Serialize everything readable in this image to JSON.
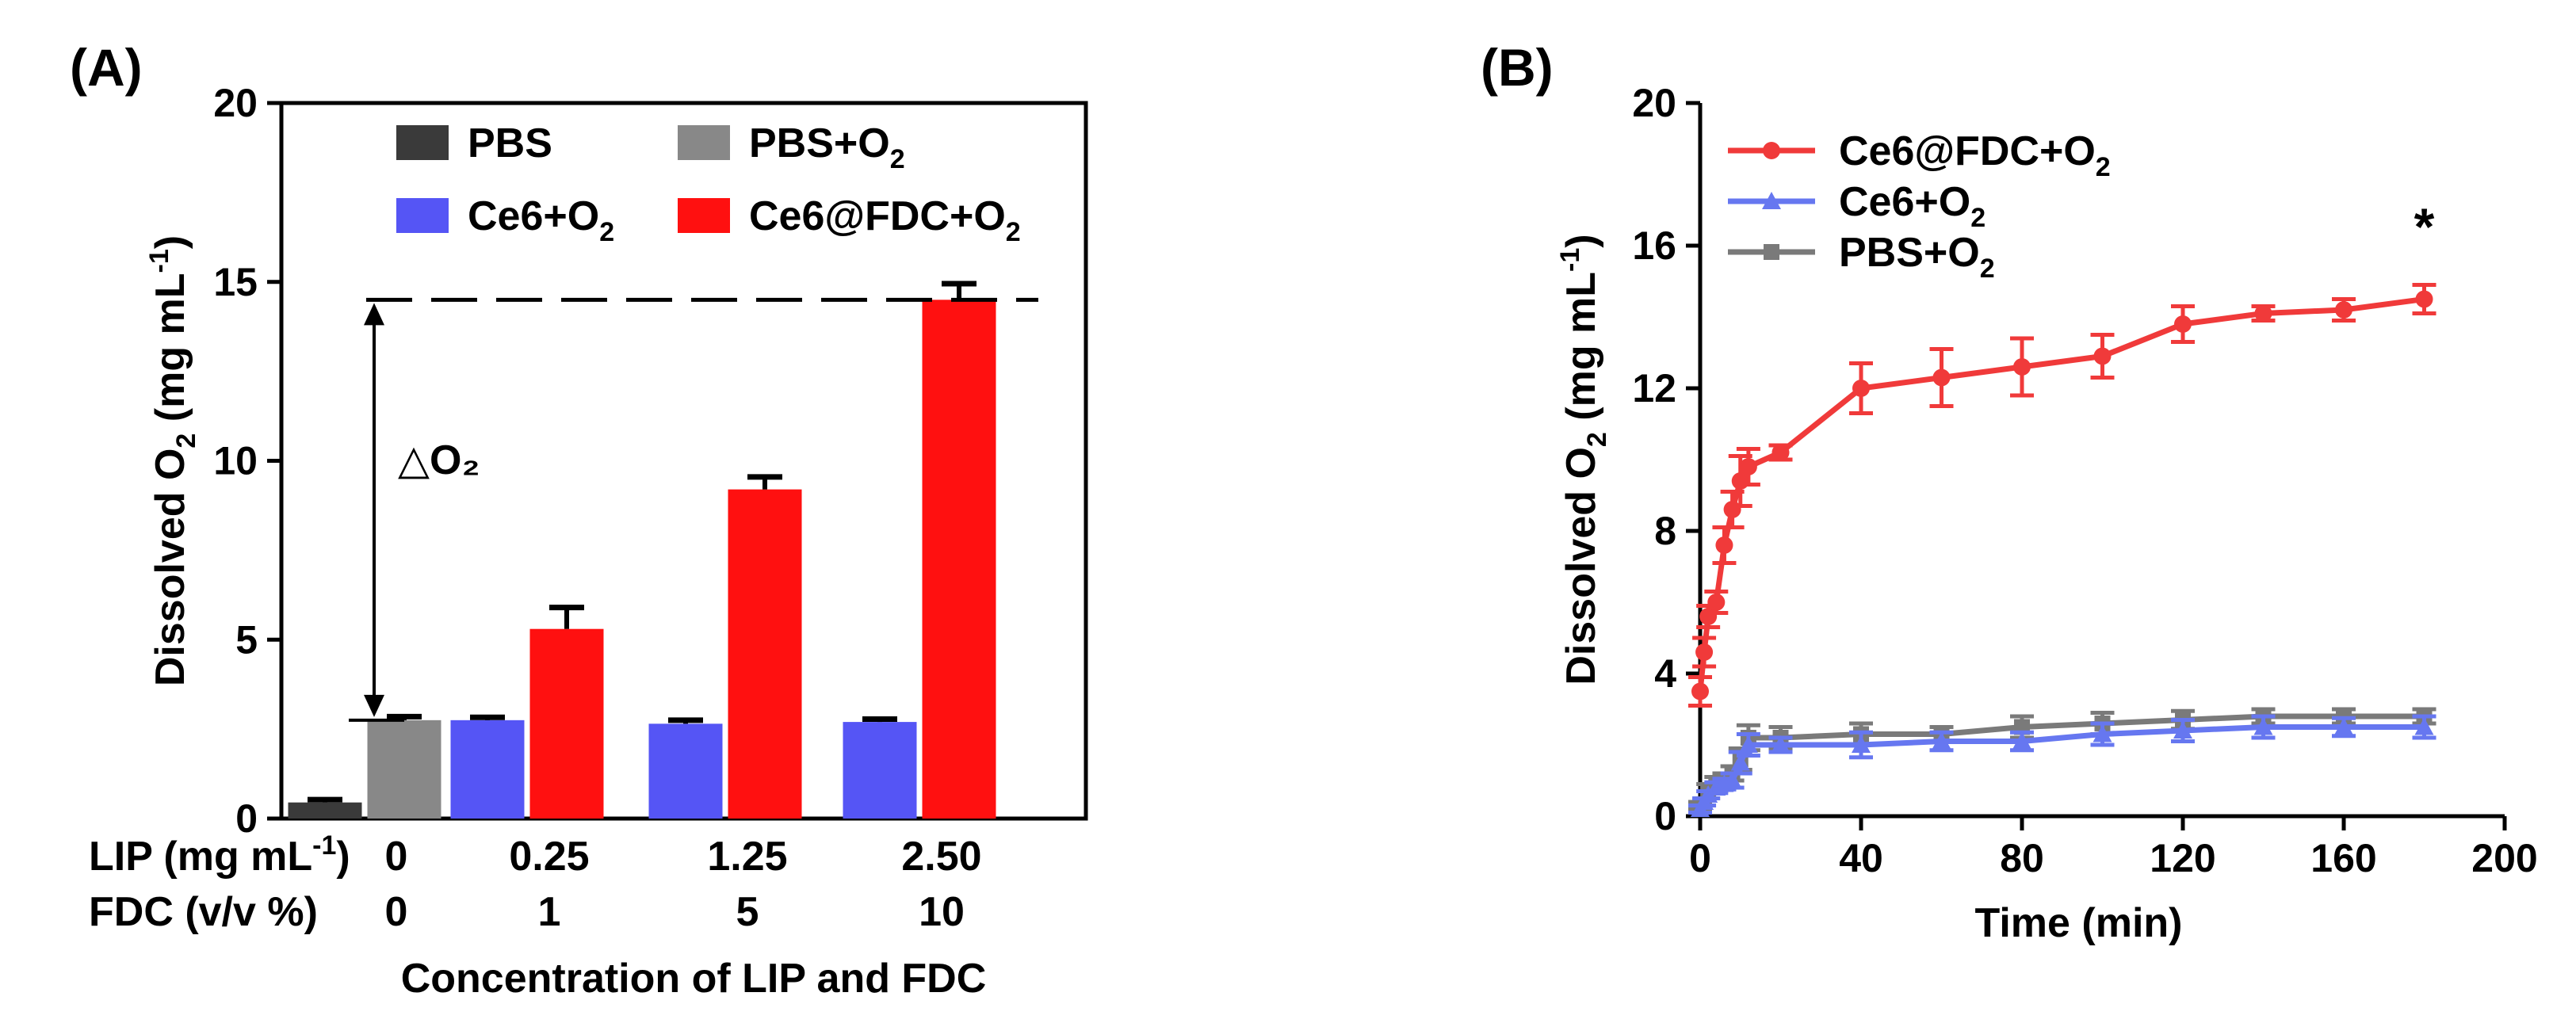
{
  "figure": {
    "panels": [
      "(A)",
      "(B)"
    ]
  },
  "chart_data": [
    {
      "type": "bar",
      "panel": "(A)",
      "ylabel": "Dissolved O2 (mg mL-1)",
      "ylabel_parts": {
        "pre": "Dissolved O",
        "sub": "2",
        "mid": " (mg mL",
        "sup": "-1",
        "post": ")"
      },
      "ylim": [
        0,
        20
      ],
      "yticks": [
        0,
        5,
        10,
        15,
        20
      ],
      "xlabel": "Concentration of LIP and FDC",
      "row_labels": {
        "lip": {
          "pre": "LIP (mg mL",
          "sup": "-1",
          "post": ")"
        },
        "fdc": "FDC (v/v %)"
      },
      "groups": [
        {
          "lip": "0",
          "fdc": "0"
        },
        {
          "lip": "0.25",
          "fdc": "1"
        },
        {
          "lip": "1.25",
          "fdc": "5"
        },
        {
          "lip": "2.50",
          "fdc": "10"
        }
      ],
      "series": [
        {
          "name": "PBS",
          "label": {
            "base": "PBS",
            "sub": ""
          },
          "color": "#3a3a3a",
          "values": [
            0.45,
            null,
            null,
            null
          ],
          "errors": [
            0.08,
            null,
            null,
            null
          ]
        },
        {
          "name": "PBS+O2",
          "label": {
            "base": "PBS+O",
            "sub": "2"
          },
          "color": "#888888",
          "values": [
            2.75,
            null,
            null,
            null
          ],
          "errors": [
            0.1,
            null,
            null,
            null
          ]
        },
        {
          "name": "Ce6+O2",
          "label": {
            "base": "Ce6+O",
            "sub": "2"
          },
          "color": "#5555f5",
          "values": [
            null,
            2.75,
            2.65,
            2.7
          ],
          "errors": [
            null,
            0.08,
            0.1,
            0.08
          ]
        },
        {
          "name": "Ce6@FDC+O2",
          "label": {
            "base": "Ce6@FDC+O",
            "sub": "2"
          },
          "color": "#ff1010",
          "values": [
            null,
            5.3,
            9.2,
            14.5
          ],
          "errors": [
            null,
            0.6,
            0.35,
            0.45
          ]
        }
      ],
      "annotation": {
        "text": "△O₂",
        "from": 2.75,
        "to": 14.5
      }
    },
    {
      "type": "line",
      "panel": "(B)",
      "xlabel": "Time (min)",
      "ylabel": "Dissolved O2 (mg mL-1)",
      "ylabel_parts": {
        "pre": "Dissolved O",
        "sub": "2",
        "mid": " (mg mL",
        "sup": "-1",
        "post": ")"
      },
      "xlim": [
        0,
        200
      ],
      "ylim": [
        0,
        20
      ],
      "xticks": [
        0,
        40,
        80,
        120,
        160,
        200
      ],
      "yticks": [
        0,
        4,
        8,
        12,
        16,
        20
      ],
      "annotation": {
        "text": "*",
        "x": 180,
        "y": 16.2
      },
      "series": [
        {
          "name": "Ce6@FDC+O2",
          "label": {
            "base": "Ce6@FDC+O",
            "sub": "2"
          },
          "color": "#f03a3a",
          "marker": "circle",
          "x": [
            0,
            1,
            2,
            4,
            6,
            8,
            10,
            12,
            20,
            40,
            60,
            80,
            100,
            120,
            140,
            160,
            180
          ],
          "y": [
            3.5,
            4.6,
            5.6,
            6.0,
            7.6,
            8.6,
            9.4,
            9.8,
            10.2,
            12.0,
            12.3,
            12.6,
            12.9,
            13.8,
            14.1,
            14.2,
            14.5
          ],
          "err": [
            0.4,
            0.4,
            0.3,
            0.3,
            0.5,
            0.5,
            0.7,
            0.5,
            0.2,
            0.7,
            0.8,
            0.8,
            0.6,
            0.5,
            0.2,
            0.3,
            0.4
          ]
        },
        {
          "name": "Ce6+O2",
          "label": {
            "base": "Ce6+O",
            "sub": "2"
          },
          "color": "#6677f0",
          "marker": "triangle",
          "x": [
            0,
            1,
            2,
            4,
            6,
            8,
            10,
            12,
            20,
            40,
            60,
            80,
            100,
            120,
            140,
            160,
            180
          ],
          "y": [
            0.2,
            0.4,
            0.6,
            0.8,
            0.9,
            1.0,
            1.5,
            2.0,
            2.0,
            2.0,
            2.1,
            2.1,
            2.3,
            2.4,
            2.5,
            2.5,
            2.5
          ],
          "err": [
            0.1,
            0.1,
            0.1,
            0.15,
            0.15,
            0.2,
            0.3,
            0.3,
            0.2,
            0.35,
            0.25,
            0.25,
            0.3,
            0.3,
            0.3,
            0.25,
            0.3
          ]
        },
        {
          "name": "PBS+O2",
          "label": {
            "base": "PBS+O",
            "sub": "2"
          },
          "color": "#7a7a7a",
          "marker": "square",
          "x": [
            0,
            2,
            4,
            6,
            8,
            10,
            12,
            20,
            40,
            60,
            80,
            100,
            120,
            140,
            160,
            180
          ],
          "y": [
            0.3,
            0.7,
            0.9,
            1.0,
            1.2,
            1.6,
            2.2,
            2.2,
            2.3,
            2.3,
            2.5,
            2.6,
            2.7,
            2.8,
            2.8,
            2.8
          ],
          "err": [
            0.1,
            0.2,
            0.2,
            0.2,
            0.2,
            0.3,
            0.35,
            0.3,
            0.3,
            0.2,
            0.3,
            0.3,
            0.25,
            0.2,
            0.2,
            0.2
          ]
        }
      ]
    }
  ]
}
